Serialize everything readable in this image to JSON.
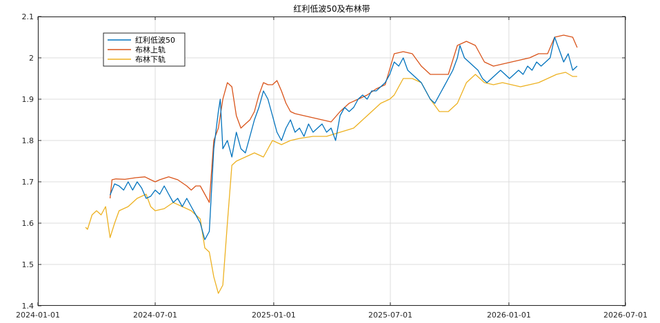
{
  "chart_data": {
    "type": "line",
    "title": "红利低波50及布林带",
    "xlabel": "",
    "ylabel": "",
    "xlim": [
      "2024-01-01",
      "2026-07-01"
    ],
    "ylim": [
      1.4,
      2.1
    ],
    "x_ticks": [
      "2024-01-01",
      "2024-07-01",
      "2025-01-01",
      "2025-07-01",
      "2026-01-01",
      "2026-07-01"
    ],
    "y_ticks": [
      "1.4",
      "1.5",
      "1.6",
      "1.7",
      "1.8",
      "1.9",
      "2",
      "2.1"
    ],
    "grid": true,
    "legend_position": "top-left",
    "series": [
      {
        "name": "红利低波50",
        "color": "#0072BD",
        "points": [
          [
            "2024-04-22",
            1.668
          ],
          [
            "2024-04-29",
            1.695
          ],
          [
            "2024-05-06",
            1.69
          ],
          [
            "2024-05-13",
            1.68
          ],
          [
            "2024-05-20",
            1.7
          ],
          [
            "2024-05-27",
            1.68
          ],
          [
            "2024-06-03",
            1.7
          ],
          [
            "2024-06-10",
            1.685
          ],
          [
            "2024-06-17",
            1.66
          ],
          [
            "2024-06-24",
            1.665
          ],
          [
            "2024-07-01",
            1.68
          ],
          [
            "2024-07-08",
            1.67
          ],
          [
            "2024-07-15",
            1.69
          ],
          [
            "2024-07-22",
            1.67
          ],
          [
            "2024-07-29",
            1.65
          ],
          [
            "2024-08-05",
            1.66
          ],
          [
            "2024-08-12",
            1.64
          ],
          [
            "2024-08-19",
            1.66
          ],
          [
            "2024-08-26",
            1.64
          ],
          [
            "2024-09-02",
            1.62
          ],
          [
            "2024-09-09",
            1.6
          ],
          [
            "2024-09-16",
            1.56
          ],
          [
            "2024-09-23",
            1.58
          ],
          [
            "2024-09-30",
            1.78
          ],
          [
            "2024-10-07",
            1.87
          ],
          [
            "2024-10-10",
            1.9
          ],
          [
            "2024-10-14",
            1.78
          ],
          [
            "2024-10-21",
            1.8
          ],
          [
            "2024-10-28",
            1.76
          ],
          [
            "2024-11-04",
            1.82
          ],
          [
            "2024-11-11",
            1.78
          ],
          [
            "2024-11-18",
            1.77
          ],
          [
            "2024-11-25",
            1.81
          ],
          [
            "2024-12-02",
            1.85
          ],
          [
            "2024-12-09",
            1.88
          ],
          [
            "2024-12-16",
            1.92
          ],
          [
            "2024-12-23",
            1.9
          ],
          [
            "2024-12-30",
            1.86
          ],
          [
            "2025-01-06",
            1.82
          ],
          [
            "2025-01-13",
            1.8
          ],
          [
            "2025-01-20",
            1.83
          ],
          [
            "2025-01-27",
            1.85
          ],
          [
            "2025-02-03",
            1.82
          ],
          [
            "2025-02-10",
            1.83
          ],
          [
            "2025-02-17",
            1.81
          ],
          [
            "2025-02-24",
            1.84
          ],
          [
            "2025-03-03",
            1.82
          ],
          [
            "2025-03-10",
            1.83
          ],
          [
            "2025-03-17",
            1.84
          ],
          [
            "2025-03-24",
            1.82
          ],
          [
            "2025-03-31",
            1.83
          ],
          [
            "2025-04-07",
            1.8
          ],
          [
            "2025-04-14",
            1.86
          ],
          [
            "2025-04-21",
            1.88
          ],
          [
            "2025-04-28",
            1.87
          ],
          [
            "2025-05-05",
            1.88
          ],
          [
            "2025-05-12",
            1.9
          ],
          [
            "2025-05-19",
            1.91
          ],
          [
            "2025-05-26",
            1.9
          ],
          [
            "2025-06-02",
            1.92
          ],
          [
            "2025-06-09",
            1.92
          ],
          [
            "2025-06-16",
            1.93
          ],
          [
            "2025-06-23",
            1.94
          ],
          [
            "2025-06-30",
            1.96
          ],
          [
            "2025-07-07",
            1.99
          ],
          [
            "2025-07-14",
            1.98
          ],
          [
            "2025-07-21",
            2.0
          ],
          [
            "2025-07-28",
            1.97
          ],
          [
            "2025-08-04",
            1.96
          ],
          [
            "2025-08-11",
            1.95
          ],
          [
            "2025-08-18",
            1.94
          ],
          [
            "2025-08-25",
            1.92
          ],
          [
            "2025-09-01",
            1.9
          ],
          [
            "2025-09-08",
            1.89
          ],
          [
            "2025-09-15",
            1.91
          ],
          [
            "2025-09-22",
            1.93
          ],
          [
            "2025-09-29",
            1.95
          ],
          [
            "2025-10-06",
            1.97
          ],
          [
            "2025-10-13",
            2.0
          ],
          [
            "2025-10-17",
            2.03
          ],
          [
            "2025-10-24",
            2.0
          ],
          [
            "2025-10-31",
            1.99
          ],
          [
            "2025-11-07",
            1.98
          ],
          [
            "2025-11-14",
            1.97
          ],
          [
            "2025-11-21",
            1.95
          ],
          [
            "2025-11-28",
            1.94
          ],
          [
            "2025-12-05",
            1.95
          ],
          [
            "2025-12-12",
            1.96
          ],
          [
            "2025-12-19",
            1.97
          ],
          [
            "2025-12-26",
            1.96
          ],
          [
            "2026-01-02",
            1.95
          ],
          [
            "2026-01-09",
            1.96
          ],
          [
            "2026-01-16",
            1.97
          ],
          [
            "2026-01-23",
            1.96
          ],
          [
            "2026-01-30",
            1.98
          ],
          [
            "2026-02-06",
            1.97
          ],
          [
            "2026-02-13",
            1.99
          ],
          [
            "2026-02-20",
            1.98
          ],
          [
            "2026-02-27",
            1.99
          ],
          [
            "2026-03-06",
            2.0
          ],
          [
            "2026-03-13",
            2.05
          ],
          [
            "2026-03-20",
            2.02
          ],
          [
            "2026-03-27",
            1.99
          ],
          [
            "2026-04-03",
            2.01
          ],
          [
            "2026-04-10",
            1.97
          ],
          [
            "2026-04-17",
            1.98
          ]
        ]
      },
      {
        "name": "布林上轨",
        "color": "#D95319",
        "points": [
          [
            "2024-04-22",
            1.66
          ],
          [
            "2024-04-25",
            1.705
          ],
          [
            "2024-05-01",
            1.707
          ],
          [
            "2024-05-15",
            1.706
          ],
          [
            "2024-06-01",
            1.71
          ],
          [
            "2024-06-15",
            1.712
          ],
          [
            "2024-06-24",
            1.705
          ],
          [
            "2024-07-01",
            1.7
          ],
          [
            "2024-07-08",
            1.705
          ],
          [
            "2024-07-22",
            1.712
          ],
          [
            "2024-08-05",
            1.705
          ],
          [
            "2024-08-19",
            1.69
          ],
          [
            "2024-08-26",
            1.68
          ],
          [
            "2024-09-02",
            1.69
          ],
          [
            "2024-09-09",
            1.69
          ],
          [
            "2024-09-16",
            1.67
          ],
          [
            "2024-09-23",
            1.65
          ],
          [
            "2024-09-30",
            1.8
          ],
          [
            "2024-10-07",
            1.83
          ],
          [
            "2024-10-14",
            1.9
          ],
          [
            "2024-10-21",
            1.94
          ],
          [
            "2024-10-28",
            1.93
          ],
          [
            "2024-11-04",
            1.86
          ],
          [
            "2024-11-11",
            1.83
          ],
          [
            "2024-11-18",
            1.84
          ],
          [
            "2024-11-25",
            1.85
          ],
          [
            "2024-12-02",
            1.87
          ],
          [
            "2024-12-09",
            1.91
          ],
          [
            "2024-12-16",
            1.94
          ],
          [
            "2024-12-23",
            1.935
          ],
          [
            "2024-12-30",
            1.935
          ],
          [
            "2025-01-06",
            1.945
          ],
          [
            "2025-01-13",
            1.92
          ],
          [
            "2025-01-20",
            1.89
          ],
          [
            "2025-01-27",
            1.87
          ],
          [
            "2025-02-03",
            1.865
          ],
          [
            "2025-02-17",
            1.86
          ],
          [
            "2025-03-03",
            1.855
          ],
          [
            "2025-03-17",
            1.85
          ],
          [
            "2025-03-31",
            1.845
          ],
          [
            "2025-04-14",
            1.87
          ],
          [
            "2025-04-28",
            1.89
          ],
          [
            "2025-05-12",
            1.9
          ],
          [
            "2025-05-26",
            1.91
          ],
          [
            "2025-06-09",
            1.925
          ],
          [
            "2025-06-23",
            1.935
          ],
          [
            "2025-07-07",
            2.01
          ],
          [
            "2025-07-21",
            2.015
          ],
          [
            "2025-08-04",
            2.01
          ],
          [
            "2025-08-18",
            1.98
          ],
          [
            "2025-09-01",
            1.96
          ],
          [
            "2025-09-15",
            1.96
          ],
          [
            "2025-09-29",
            1.96
          ],
          [
            "2025-10-13",
            2.03
          ],
          [
            "2025-10-27",
            2.04
          ],
          [
            "2025-11-10",
            2.03
          ],
          [
            "2025-11-24",
            1.99
          ],
          [
            "2025-12-08",
            1.98
          ],
          [
            "2025-12-22",
            1.985
          ],
          [
            "2026-01-05",
            1.99
          ],
          [
            "2026-01-19",
            1.995
          ],
          [
            "2026-02-02",
            2.0
          ],
          [
            "2026-02-16",
            2.01
          ],
          [
            "2026-03-02",
            2.01
          ],
          [
            "2026-03-13",
            2.05
          ],
          [
            "2026-03-27",
            2.055
          ],
          [
            "2026-04-10",
            2.05
          ],
          [
            "2026-04-17",
            2.025
          ]
        ]
      },
      {
        "name": "布林下轨",
        "color": "#EDB120",
        "points": [
          [
            "2024-03-15",
            1.59
          ],
          [
            "2024-03-18",
            1.585
          ],
          [
            "2024-03-25",
            1.62
          ],
          [
            "2024-04-01",
            1.63
          ],
          [
            "2024-04-08",
            1.62
          ],
          [
            "2024-04-15",
            1.64
          ],
          [
            "2024-04-22",
            1.565
          ],
          [
            "2024-04-29",
            1.6
          ],
          [
            "2024-05-06",
            1.63
          ],
          [
            "2024-05-20",
            1.64
          ],
          [
            "2024-06-03",
            1.66
          ],
          [
            "2024-06-17",
            1.67
          ],
          [
            "2024-06-24",
            1.64
          ],
          [
            "2024-07-01",
            1.63
          ],
          [
            "2024-07-15",
            1.635
          ],
          [
            "2024-07-29",
            1.65
          ],
          [
            "2024-08-12",
            1.64
          ],
          [
            "2024-08-26",
            1.63
          ],
          [
            "2024-09-09",
            1.61
          ],
          [
            "2024-09-16",
            1.54
          ],
          [
            "2024-09-23",
            1.53
          ],
          [
            "2024-09-30",
            1.47
          ],
          [
            "2024-10-07",
            1.43
          ],
          [
            "2024-10-14",
            1.45
          ],
          [
            "2024-10-21",
            1.6
          ],
          [
            "2024-10-28",
            1.74
          ],
          [
            "2024-11-04",
            1.75
          ],
          [
            "2024-11-18",
            1.76
          ],
          [
            "2024-12-02",
            1.77
          ],
          [
            "2024-12-16",
            1.76
          ],
          [
            "2024-12-23",
            1.78
          ],
          [
            "2024-12-30",
            1.8
          ],
          [
            "2025-01-13",
            1.79
          ],
          [
            "2025-01-27",
            1.8
          ],
          [
            "2025-02-10",
            1.805
          ],
          [
            "2025-03-03",
            1.81
          ],
          [
            "2025-03-24",
            1.81
          ],
          [
            "2025-04-14",
            1.82
          ],
          [
            "2025-05-05",
            1.83
          ],
          [
            "2025-05-26",
            1.86
          ],
          [
            "2025-06-16",
            1.89
          ],
          [
            "2025-06-30",
            1.9
          ],
          [
            "2025-07-07",
            1.91
          ],
          [
            "2025-07-21",
            1.95
          ],
          [
            "2025-08-04",
            1.95
          ],
          [
            "2025-08-18",
            1.94
          ],
          [
            "2025-09-01",
            1.9
          ],
          [
            "2025-09-15",
            1.87
          ],
          [
            "2025-09-29",
            1.87
          ],
          [
            "2025-10-13",
            1.89
          ],
          [
            "2025-10-27",
            1.94
          ],
          [
            "2025-11-10",
            1.96
          ],
          [
            "2025-11-24",
            1.94
          ],
          [
            "2025-12-08",
            1.935
          ],
          [
            "2025-12-22",
            1.94
          ],
          [
            "2026-01-05",
            1.935
          ],
          [
            "2026-01-19",
            1.93
          ],
          [
            "2026-02-02",
            1.935
          ],
          [
            "2026-02-16",
            1.94
          ],
          [
            "2026-03-02",
            1.95
          ],
          [
            "2026-03-16",
            1.96
          ],
          [
            "2026-03-30",
            1.965
          ],
          [
            "2026-04-10",
            1.955
          ],
          [
            "2026-04-17",
            1.955
          ]
        ]
      }
    ]
  }
}
